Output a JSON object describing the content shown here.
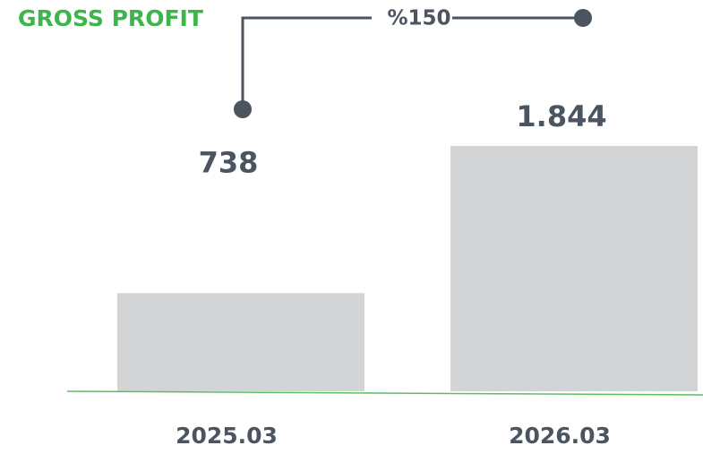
{
  "chart_data": {
    "type": "bar",
    "title": "GROSS PROFIT",
    "categories": [
      "2025.03",
      "2026.03"
    ],
    "values": [
      738,
      1844
    ],
    "value_labels": [
      "738",
      "1.844"
    ],
    "color": "#d3d4d6",
    "annotation": "%150"
  }
}
